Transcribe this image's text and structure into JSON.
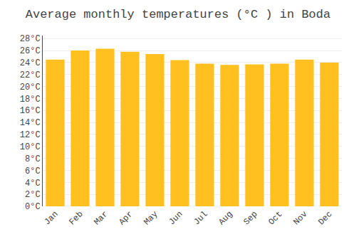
{
  "chart_data": {
    "type": "bar",
    "title": "Average monthly temperatures (°C ) in Boda",
    "categories": [
      "Jan",
      "Feb",
      "Mar",
      "Apr",
      "May",
      "Jun",
      "Jul",
      "Aug",
      "Sep",
      "Oct",
      "Nov",
      "Dec"
    ],
    "values": [
      24.5,
      26.0,
      26.3,
      25.8,
      25.4,
      24.4,
      23.8,
      23.6,
      23.7,
      23.8,
      24.5,
      24.0
    ],
    "color": "#FFC020",
    "ylim": [
      0,
      28.5
    ],
    "yticks": [
      {
        "value": 0,
        "label": "0°C"
      },
      {
        "value": 2,
        "label": "2°C"
      },
      {
        "value": 4,
        "label": "4°C"
      },
      {
        "value": 6,
        "label": "6°C"
      },
      {
        "value": 8,
        "label": "8°C"
      },
      {
        "value": 10,
        "label": "10°C"
      },
      {
        "value": 12,
        "label": "12°C"
      },
      {
        "value": 14,
        "label": "14°C"
      },
      {
        "value": 16,
        "label": "16°C"
      },
      {
        "value": 18,
        "label": "18°C"
      },
      {
        "value": 20,
        "label": "20°C"
      },
      {
        "value": 22,
        "label": "22°C"
      },
      {
        "value": 24,
        "label": "24°C"
      },
      {
        "value": 26,
        "label": "26°C"
      },
      {
        "value": 28,
        "label": "28°C"
      }
    ],
    "grid": true
  }
}
